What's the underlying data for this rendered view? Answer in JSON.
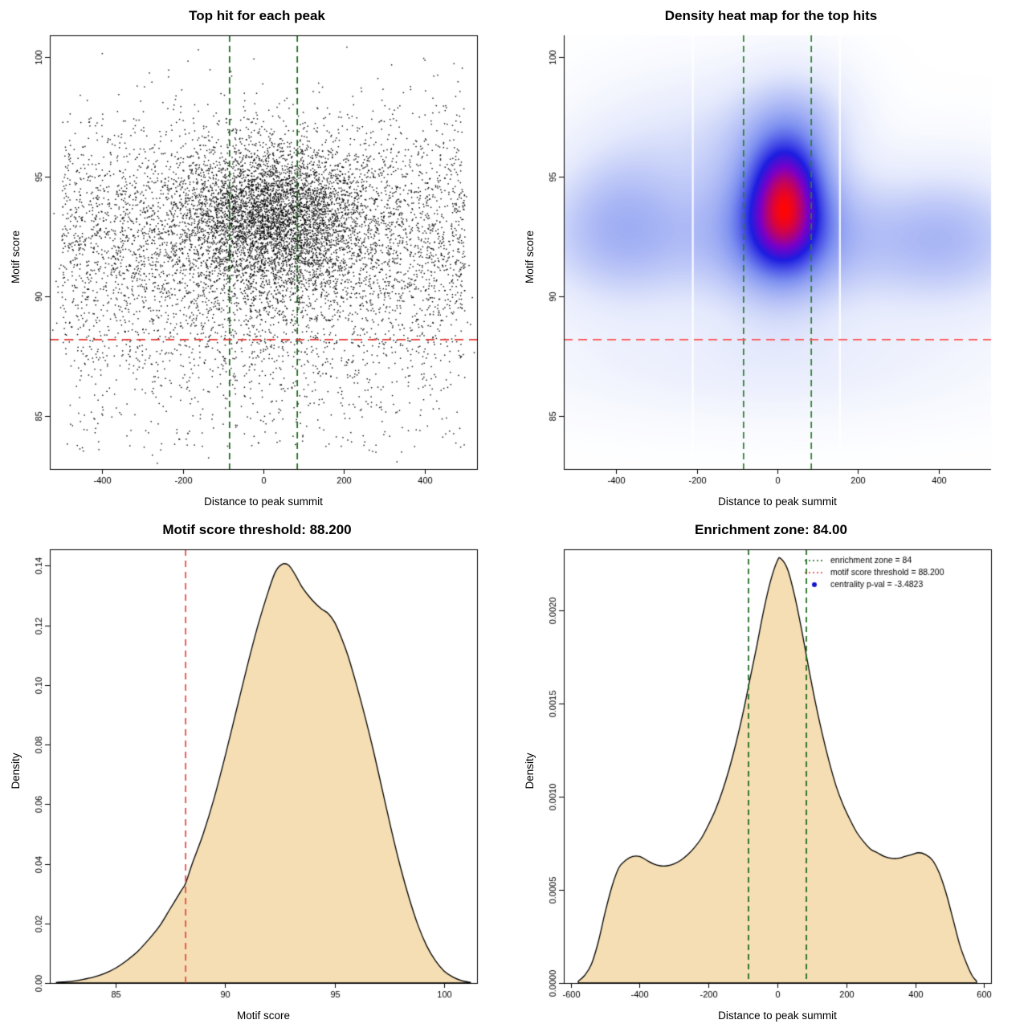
{
  "page": {
    "background": "#FFFFFF"
  },
  "chart_data": [
    {
      "type": "scatter",
      "title": "Top hit for each peak",
      "xlabel": "Distance to peak summit",
      "ylabel": "Motif score",
      "xlim": [
        -530,
        530
      ],
      "ylim": [
        82.8,
        100.9
      ],
      "xticks": [
        -400,
        -200,
        0,
        200,
        400
      ],
      "xtick_labels": [
        "-400",
        "-200",
        "0",
        "200",
        "400"
      ],
      "yticks": [
        85,
        90,
        95,
        100
      ],
      "ytick_labels": [
        "85",
        "90",
        "95",
        "100"
      ],
      "box": true,
      "point_color": "#000000",
      "point_size": 1.4,
      "seed": 42,
      "n_points_total": 9750,
      "clusters": [
        {
          "n": 4200,
          "x": {
            "type": "normal",
            "mean": 25,
            "sd": 115
          },
          "y": {
            "type": "normal",
            "mean": 93.3,
            "sd": 1.55
          }
        },
        {
          "n": 4300,
          "x": {
            "type": "uniform",
            "min": -500,
            "max": 500
          },
          "y": {
            "type": "normal",
            "mean": 92.6,
            "sd": 2.5
          }
        },
        {
          "n": 900,
          "x": {
            "type": "normal",
            "mean": 0,
            "sd": 300
          },
          "y": {
            "type": "normal",
            "mean": 89.5,
            "sd": 2.2
          }
        },
        {
          "n": 350,
          "x": {
            "type": "uniform",
            "min": -500,
            "max": 500
          },
          "y": {
            "type": "uniform",
            "min": 83.5,
            "max": 88.5
          }
        }
      ],
      "vlines": {
        "values": [
          -84,
          84
        ],
        "color": "#176617",
        "dash": [
          8,
          5
        ],
        "width": 1.7,
        "meaning": "enrichment zone = 84"
      },
      "hline": {
        "value": 88.2,
        "color": "#E53935",
        "dash": [
          11,
          7
        ],
        "width": 1.7,
        "meaning": "motif score threshold = 88.200"
      }
    },
    {
      "type": "heatmap",
      "title": "Density heat map for the top hits",
      "xlabel": "Distance to peak summit",
      "ylabel": "Motif score",
      "xlim": [
        -530,
        530
      ],
      "ylim": [
        82.8,
        100.9
      ],
      "xticks": [
        -400,
        -200,
        0,
        200,
        400
      ],
      "xtick_labels": [
        "-400",
        "-200",
        "0",
        "200",
        "400"
      ],
      "yticks": [
        85,
        90,
        95,
        100
      ],
      "ytick_labels": [
        "85",
        "90",
        "95",
        "100"
      ],
      "box": false,
      "gamma": 0.8,
      "kernels": [
        {
          "w": 1.0,
          "cx": 20,
          "cy": 94.6,
          "sx": 52,
          "sy": 1.3
        },
        {
          "w": 0.92,
          "cx": 15,
          "cy": 92.9,
          "sx": 60,
          "sy": 1.2
        },
        {
          "w": 0.5,
          "cx": 10,
          "cy": 93.8,
          "sx": 105,
          "sy": 2.7
        },
        {
          "w": 0.3,
          "cx": 0,
          "cy": 92.3,
          "sx": 430,
          "sy": 1.9
        },
        {
          "w": 0.26,
          "cx": -395,
          "cy": 93.3,
          "sx": 115,
          "sy": 2.3
        },
        {
          "w": 0.2,
          "cx": 55,
          "cy": 97.4,
          "sx": 95,
          "sy": 1.5
        },
        {
          "w": 0.11,
          "cx": -30,
          "cy": 87.2,
          "sx": 380,
          "sy": 1.6
        },
        {
          "w": 0.22,
          "cx": 430,
          "cy": 92.5,
          "sx": 135,
          "sy": 2.0
        },
        {
          "w": 0.14,
          "cx": -190,
          "cy": 96.6,
          "sx": 160,
          "sy": 1.9
        }
      ],
      "colormap": [
        {
          "pos": 0,
          "color": "#FFFFFF"
        },
        {
          "pos": 0.12,
          "color": "#E4E9FC"
        },
        {
          "pos": 0.35,
          "color": "#7F92F0"
        },
        {
          "pos": 0.58,
          "color": "#1D1DE0"
        },
        {
          "pos": 0.74,
          "color": "#7A00C8"
        },
        {
          "pos": 1,
          "color": "#FF0505"
        }
      ],
      "white_stripes": [
        -210,
        155
      ],
      "vlines": {
        "values": [
          -84,
          84
        ],
        "color": "#2A7E2A",
        "dash": [
          8,
          5
        ],
        "width": 1.7,
        "meaning": "enrichment zone = 84"
      },
      "hline": {
        "value": 88.2,
        "color": "#FF5252",
        "dash": [
          11,
          7
        ],
        "width": 1.7,
        "meaning": "motif score threshold = 88.200"
      }
    },
    {
      "type": "density",
      "title": "Motif score threshold: 88.200",
      "xlabel": "Motif score",
      "ylabel": "Density",
      "xlim": [
        82,
        101.5
      ],
      "ylim": [
        0,
        0.1455
      ],
      "xticks": [
        85,
        90,
        95,
        100
      ],
      "xtick_labels": [
        "85",
        "90",
        "95",
        "100"
      ],
      "yticks": [
        0,
        0.02,
        0.04,
        0.06,
        0.08,
        0.1,
        0.12,
        0.14
      ],
      "ytick_labels": [
        "0.00",
        "0.02",
        "0.04",
        "0.06",
        "0.08",
        "0.10",
        "0.12",
        "0.14"
      ],
      "box": true,
      "fill_color": "#F5DEB3",
      "line_color": "#000000",
      "vlines": {
        "values": [
          88.2
        ],
        "color": "#E53935",
        "dash": [
          8,
          6
        ],
        "width": 1.6,
        "meaning": "motif score threshold = 88.200"
      },
      "curve": [
        [
          82.3,
          0.0002
        ],
        [
          83,
          0.0006
        ],
        [
          83.5,
          0.0012
        ],
        [
          84,
          0.002
        ],
        [
          84.5,
          0.0032
        ],
        [
          85,
          0.005
        ],
        [
          85.5,
          0.0075
        ],
        [
          86,
          0.0105
        ],
        [
          86.5,
          0.0145
        ],
        [
          87,
          0.019
        ],
        [
          87.5,
          0.025
        ],
        [
          88,
          0.031
        ],
        [
          88.2,
          0.0335
        ],
        [
          88.5,
          0.04
        ],
        [
          89,
          0.05
        ],
        [
          89.5,
          0.062
        ],
        [
          90,
          0.076
        ],
        [
          90.5,
          0.091
        ],
        [
          91,
          0.106
        ],
        [
          91.5,
          0.12
        ],
        [
          92,
          0.132
        ],
        [
          92.3,
          0.138
        ],
        [
          92.6,
          0.1405
        ],
        [
          92.9,
          0.1402
        ],
        [
          93.2,
          0.137
        ],
        [
          93.5,
          0.133
        ],
        [
          93.8,
          0.13
        ],
        [
          94.1,
          0.1275
        ],
        [
          94.4,
          0.1255
        ],
        [
          94.7,
          0.124
        ],
        [
          95,
          0.121
        ],
        [
          95.3,
          0.116
        ],
        [
          95.6,
          0.11
        ],
        [
          96,
          0.1
        ],
        [
          96.4,
          0.089
        ],
        [
          96.8,
          0.077
        ],
        [
          97.2,
          0.064
        ],
        [
          97.6,
          0.051
        ],
        [
          98,
          0.039
        ],
        [
          98.4,
          0.0285
        ],
        [
          98.8,
          0.0195
        ],
        [
          99.2,
          0.0125
        ],
        [
          99.6,
          0.0075
        ],
        [
          100,
          0.004
        ],
        [
          100.4,
          0.002
        ],
        [
          100.8,
          0.0008
        ],
        [
          101.2,
          0.0002
        ]
      ]
    },
    {
      "type": "density",
      "title": "Enrichment zone: 84.00",
      "xlabel": "Distance to peak summit",
      "ylabel": "Density",
      "xlim": [
        -620,
        620
      ],
      "ylim": [
        0,
        0.00233
      ],
      "xticks": [
        -600,
        -400,
        -200,
        0,
        200,
        400,
        600
      ],
      "xtick_labels": [
        "-600",
        "-400",
        "-200",
        "0",
        "200",
        "400",
        "600"
      ],
      "yticks": [
        0,
        0.0005,
        0.001,
        0.0015,
        0.002
      ],
      "ytick_labels": [
        "0.0000",
        "0.0005",
        "0.0010",
        "0.0015",
        "0.0020"
      ],
      "box": true,
      "fill_color": "#F5DEB3",
      "line_color": "#000000",
      "vlines": {
        "values": [
          -84,
          84
        ],
        "color": "#176617",
        "dash": [
          7,
          5
        ],
        "width": 1.7,
        "meaning": "enrichment zone = 84"
      },
      "curve": [
        [
          -578,
          1e-05
        ],
        [
          -560,
          4e-05
        ],
        [
          -540,
          0.0001
        ],
        [
          -520,
          0.00022
        ],
        [
          -500,
          0.00038
        ],
        [
          -480,
          0.00052
        ],
        [
          -460,
          0.00062
        ],
        [
          -440,
          0.00066
        ],
        [
          -420,
          0.00068
        ],
        [
          -400,
          0.00068
        ],
        [
          -380,
          0.00066
        ],
        [
          -360,
          0.00064
        ],
        [
          -340,
          0.00063
        ],
        [
          -320,
          0.00063
        ],
        [
          -300,
          0.00064
        ],
        [
          -280,
          0.00066
        ],
        [
          -260,
          0.00069
        ],
        [
          -240,
          0.00073
        ],
        [
          -220,
          0.00078
        ],
        [
          -200,
          0.00085
        ],
        [
          -180,
          0.00093
        ],
        [
          -160,
          0.00103
        ],
        [
          -140,
          0.00115
        ],
        [
          -120,
          0.00129
        ],
        [
          -100,
          0.00145
        ],
        [
          -80,
          0.00163
        ],
        [
          -60,
          0.00181
        ],
        [
          -40,
          0.002
        ],
        [
          -20,
          0.00216
        ],
        [
          0,
          0.00227
        ],
        [
          10,
          0.00228
        ],
        [
          30,
          0.00222
        ],
        [
          50,
          0.00208
        ],
        [
          70,
          0.0019
        ],
        [
          90,
          0.0017
        ],
        [
          110,
          0.00151
        ],
        [
          130,
          0.00134
        ],
        [
          150,
          0.00119
        ],
        [
          170,
          0.00106
        ],
        [
          190,
          0.00096
        ],
        [
          210,
          0.00088
        ],
        [
          230,
          0.00081
        ],
        [
          250,
          0.00076
        ],
        [
          270,
          0.00072
        ],
        [
          290,
          0.0007
        ],
        [
          310,
          0.00068
        ],
        [
          330,
          0.00067
        ],
        [
          350,
          0.00067
        ],
        [
          370,
          0.00068
        ],
        [
          390,
          0.00069
        ],
        [
          410,
          0.0007
        ],
        [
          430,
          0.00069
        ],
        [
          450,
          0.00066
        ],
        [
          470,
          0.00059
        ],
        [
          490,
          0.00048
        ],
        [
          510,
          0.00034
        ],
        [
          530,
          0.0002
        ],
        [
          550,
          0.0001
        ],
        [
          565,
          4e-05
        ],
        [
          578,
          1e-05
        ]
      ],
      "legend": {
        "items": [
          {
            "type": "line",
            "color": "#176617",
            "label": "enrichment zone = 84"
          },
          {
            "type": "line",
            "color": "#E53935",
            "label": "motif score threshold = 88.200"
          },
          {
            "type": "point",
            "color": "#1414CC",
            "label": "centrality p-val = -3.4823"
          }
        ]
      }
    }
  ]
}
